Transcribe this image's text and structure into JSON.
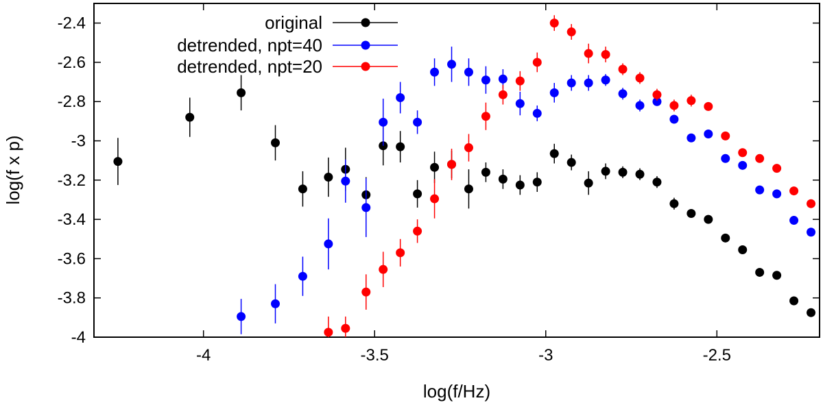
{
  "chart_data": {
    "type": "scatter",
    "title": "",
    "xlabel": "log(f/Hz)",
    "ylabel": "log(f x p)",
    "xlim": [
      -4.32,
      -2.2
    ],
    "ylim": [
      -4.0,
      -2.3
    ],
    "xticks": [
      {
        "value": -4.0,
        "label": "-4"
      },
      {
        "value": -3.5,
        "label": "-3.5"
      },
      {
        "value": -3.0,
        "label": "-3"
      },
      {
        "value": -2.5,
        "label": "-2.5"
      }
    ],
    "yticks": [
      {
        "value": -2.4,
        "label": "-2.4"
      },
      {
        "value": -2.6,
        "label": "-2.6"
      },
      {
        "value": -2.8,
        "label": "-2.8"
      },
      {
        "value": -3.0,
        "label": "-3"
      },
      {
        "value": -3.2,
        "label": "-3.2"
      },
      {
        "value": -3.4,
        "label": "-3.4"
      },
      {
        "value": -3.6,
        "label": "-3.6"
      },
      {
        "value": -3.8,
        "label": "-3.8"
      },
      {
        "value": -4.0,
        "label": "-4"
      }
    ],
    "grid": false,
    "legend_position": "top-center",
    "series": [
      {
        "name": "original",
        "color": "#000000",
        "points": [
          {
            "x": -4.25,
            "y": -3.105,
            "err": 0.12
          },
          {
            "x": -4.04,
            "y": -2.88,
            "err": 0.1
          },
          {
            "x": -3.89,
            "y": -2.755,
            "err": 0.09
          },
          {
            "x": -3.79,
            "y": -3.01,
            "err": 0.09
          },
          {
            "x": -3.71,
            "y": -3.245,
            "err": 0.09
          },
          {
            "x": -3.635,
            "y": -3.185,
            "err": 0.1
          },
          {
            "x": -3.585,
            "y": -3.145,
            "err": 0.11
          },
          {
            "x": -3.525,
            "y": -3.275,
            "err": 0.09
          },
          {
            "x": -3.475,
            "y": -3.025,
            "err": 0.1
          },
          {
            "x": -3.425,
            "y": -3.03,
            "err": 0.08
          },
          {
            "x": -3.375,
            "y": -3.27,
            "err": 0.07
          },
          {
            "x": -3.325,
            "y": -3.135,
            "err": 0.08
          },
          {
            "x": -3.275,
            "y": -3.12,
            "err": 0.07
          },
          {
            "x": -3.225,
            "y": -3.245,
            "err": 0.1
          },
          {
            "x": -3.175,
            "y": -3.16,
            "err": 0.05
          },
          {
            "x": -3.125,
            "y": -3.195,
            "err": 0.05
          },
          {
            "x": -3.075,
            "y": -3.225,
            "err": 0.05
          },
          {
            "x": -3.025,
            "y": -3.21,
            "err": 0.05
          },
          {
            "x": -2.975,
            "y": -3.065,
            "err": 0.05
          },
          {
            "x": -2.925,
            "y": -3.11,
            "err": 0.04
          },
          {
            "x": -2.875,
            "y": -3.215,
            "err": 0.06
          },
          {
            "x": -2.825,
            "y": -3.155,
            "err": 0.04
          },
          {
            "x": -2.775,
            "y": -3.16,
            "err": 0.03
          },
          {
            "x": -2.725,
            "y": -3.17,
            "err": 0.03
          },
          {
            "x": -2.675,
            "y": -3.21,
            "err": 0.03
          },
          {
            "x": -2.625,
            "y": -3.32,
            "err": 0.03
          },
          {
            "x": -2.575,
            "y": -3.37,
            "err": 0.02
          },
          {
            "x": -2.525,
            "y": -3.4,
            "err": 0.02
          },
          {
            "x": -2.475,
            "y": -3.495,
            "err": 0.02
          },
          {
            "x": -2.425,
            "y": -3.555,
            "err": 0.02
          },
          {
            "x": -2.375,
            "y": -3.67,
            "err": 0.02
          },
          {
            "x": -2.325,
            "y": -3.685,
            "err": 0.01
          },
          {
            "x": -2.275,
            "y": -3.815,
            "err": 0.01
          },
          {
            "x": -2.225,
            "y": -3.875,
            "err": 0.01
          }
        ]
      },
      {
        "name": "detrended, npt=40",
        "color": "#0000ff",
        "points": [
          {
            "x": -3.89,
            "y": -3.895,
            "err": 0.09
          },
          {
            "x": -3.79,
            "y": -3.83,
            "err": 0.1
          },
          {
            "x": -3.71,
            "y": -3.69,
            "err": 0.1
          },
          {
            "x": -3.635,
            "y": -3.525,
            "err": 0.13
          },
          {
            "x": -3.585,
            "y": -3.205,
            "err": 0.11
          },
          {
            "x": -3.525,
            "y": -3.34,
            "err": 0.15
          },
          {
            "x": -3.475,
            "y": -2.905,
            "err": 0.12
          },
          {
            "x": -3.425,
            "y": -2.78,
            "err": 0.08
          },
          {
            "x": -3.375,
            "y": -2.905,
            "err": 0.06
          },
          {
            "x": -3.325,
            "y": -2.65,
            "err": 0.07
          },
          {
            "x": -3.275,
            "y": -2.61,
            "err": 0.09
          },
          {
            "x": -3.225,
            "y": -2.65,
            "err": 0.07
          },
          {
            "x": -3.175,
            "y": -2.69,
            "err": 0.07
          },
          {
            "x": -3.125,
            "y": -2.685,
            "err": 0.05
          },
          {
            "x": -3.075,
            "y": -2.81,
            "err": 0.06
          },
          {
            "x": -3.025,
            "y": -2.86,
            "err": 0.04
          },
          {
            "x": -2.975,
            "y": -2.755,
            "err": 0.05
          },
          {
            "x": -2.925,
            "y": -2.705,
            "err": 0.04
          },
          {
            "x": -2.875,
            "y": -2.705,
            "err": 0.04
          },
          {
            "x": -2.825,
            "y": -2.69,
            "err": 0.03
          },
          {
            "x": -2.775,
            "y": -2.76,
            "err": 0.03
          },
          {
            "x": -2.725,
            "y": -2.82,
            "err": 0.03
          },
          {
            "x": -2.675,
            "y": -2.8,
            "err": 0.02
          },
          {
            "x": -2.625,
            "y": -2.89,
            "err": 0.02
          },
          {
            "x": -2.575,
            "y": -2.985,
            "err": 0.02
          },
          {
            "x": -2.525,
            "y": -2.965,
            "err": 0.02
          },
          {
            "x": -2.475,
            "y": -3.09,
            "err": 0.02
          },
          {
            "x": -2.425,
            "y": -3.125,
            "err": 0.02
          },
          {
            "x": -2.375,
            "y": -3.25,
            "err": 0.02
          },
          {
            "x": -2.325,
            "y": -3.27,
            "err": 0.01
          },
          {
            "x": -2.275,
            "y": -3.405,
            "err": 0.01
          },
          {
            "x": -2.225,
            "y": -3.465,
            "err": 0.01
          }
        ]
      },
      {
        "name": "detrended, npt=20",
        "color": "#ff0000",
        "points": [
          {
            "x": -3.635,
            "y": -3.975,
            "err": 0.08
          },
          {
            "x": -3.585,
            "y": -3.955,
            "err": 0.06
          },
          {
            "x": -3.525,
            "y": -3.77,
            "err": 0.09
          },
          {
            "x": -3.475,
            "y": -3.655,
            "err": 0.09
          },
          {
            "x": -3.425,
            "y": -3.57,
            "err": 0.07
          },
          {
            "x": -3.375,
            "y": -3.46,
            "err": 0.06
          },
          {
            "x": -3.325,
            "y": -3.295,
            "err": 0.1
          },
          {
            "x": -3.275,
            "y": -3.12,
            "err": 0.08
          },
          {
            "x": -3.225,
            "y": -3.035,
            "err": 0.07
          },
          {
            "x": -3.175,
            "y": -2.875,
            "err": 0.07
          },
          {
            "x": -3.125,
            "y": -2.765,
            "err": 0.05
          },
          {
            "x": -3.075,
            "y": -2.695,
            "err": 0.05
          },
          {
            "x": -3.025,
            "y": -2.6,
            "err": 0.05
          },
          {
            "x": -2.975,
            "y": -2.4,
            "err": 0.04
          },
          {
            "x": -2.925,
            "y": -2.445,
            "err": 0.04
          },
          {
            "x": -2.875,
            "y": -2.555,
            "err": 0.05
          },
          {
            "x": -2.825,
            "y": -2.56,
            "err": 0.04
          },
          {
            "x": -2.775,
            "y": -2.635,
            "err": 0.03
          },
          {
            "x": -2.725,
            "y": -2.68,
            "err": 0.03
          },
          {
            "x": -2.675,
            "y": -2.765,
            "err": 0.03
          },
          {
            "x": -2.625,
            "y": -2.82,
            "err": 0.03
          },
          {
            "x": -2.575,
            "y": -2.795,
            "err": 0.03
          },
          {
            "x": -2.525,
            "y": -2.825,
            "err": 0.02
          },
          {
            "x": -2.475,
            "y": -2.975,
            "err": 0.02
          },
          {
            "x": -2.425,
            "y": -3.06,
            "err": 0.02
          },
          {
            "x": -2.375,
            "y": -3.09,
            "err": 0.02
          },
          {
            "x": -2.325,
            "y": -3.14,
            "err": 0.01
          },
          {
            "x": -2.275,
            "y": -3.255,
            "err": 0.01
          },
          {
            "x": -2.225,
            "y": -3.32,
            "err": 0.01
          }
        ]
      }
    ]
  }
}
